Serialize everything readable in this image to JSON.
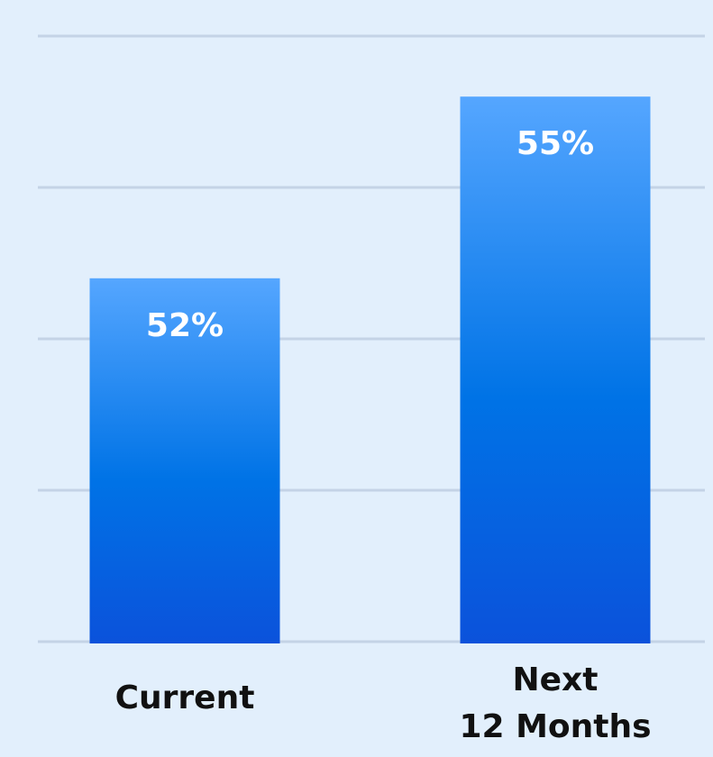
{
  "chart_data": {
    "type": "bar",
    "categories": [
      "Current",
      "Next 12 Months"
    ],
    "category_label_lines": [
      [
        "Current"
      ],
      [
        "Next",
        "12 Months"
      ]
    ],
    "values": [
      52,
      55
    ],
    "value_labels": [
      "52%",
      "55%"
    ],
    "value_suffix": "%",
    "ylim": [
      46,
      56
    ],
    "gridlines": true,
    "title": "",
    "xlabel": "",
    "ylabel": "",
    "colors": {
      "background": "#e2effc",
      "gridline": "#c4d3e6",
      "bar_top": "#55a6ff",
      "bar_mid": "#0073e6",
      "bar_bottom": "#0b52db",
      "value_text": "#ffffff",
      "category_text": "#111111"
    }
  }
}
